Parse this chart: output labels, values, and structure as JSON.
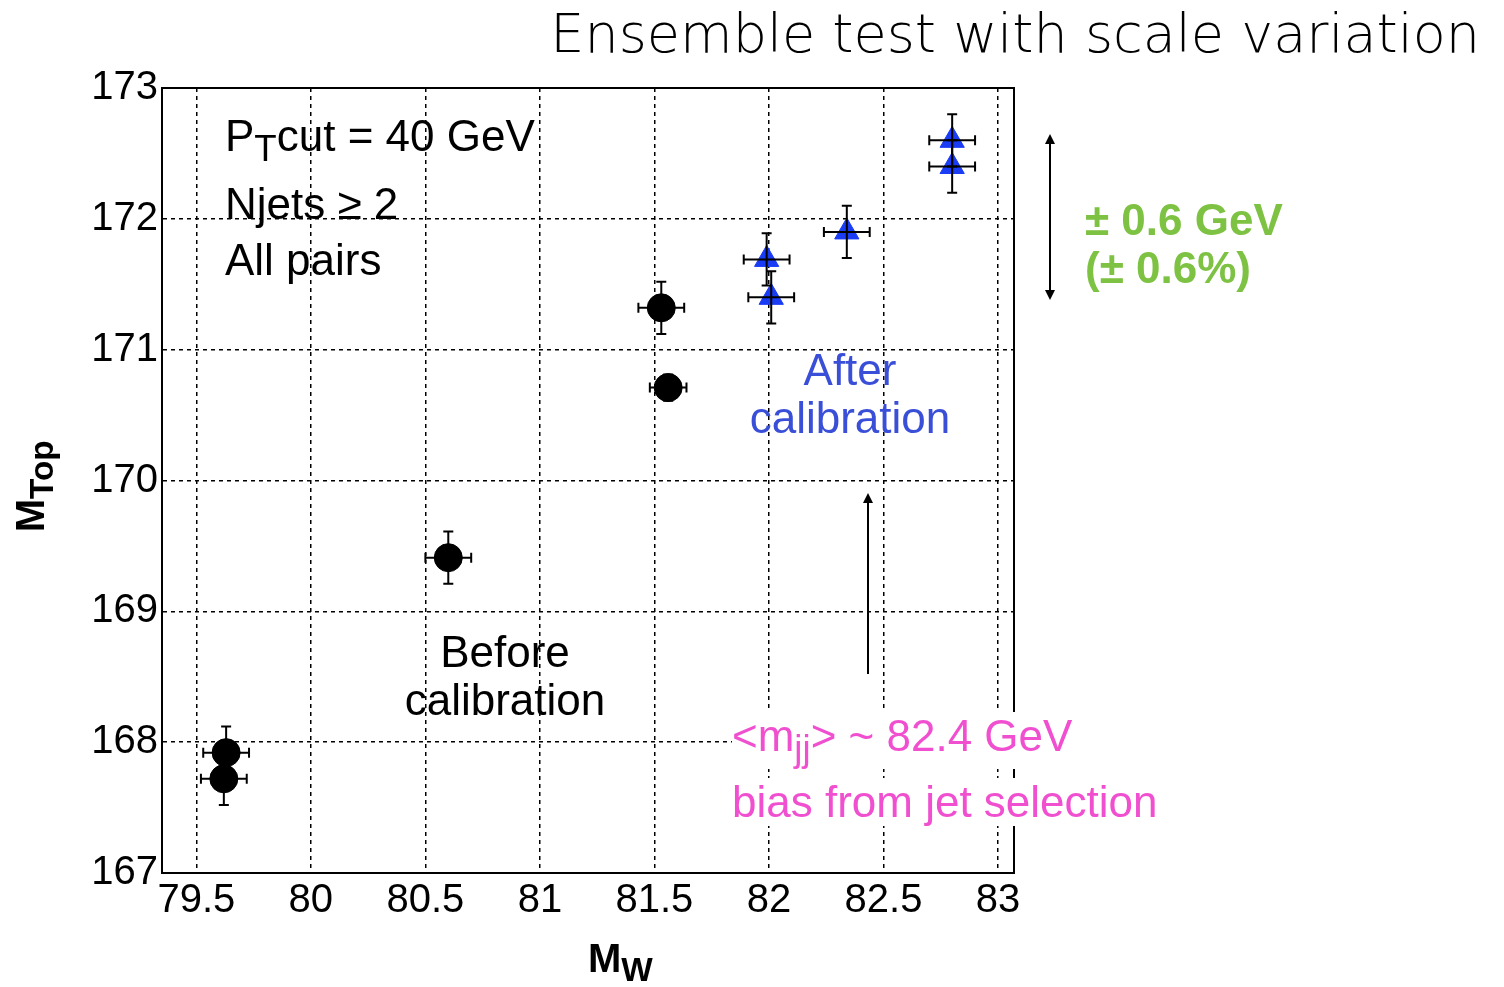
{
  "chart_data": {
    "type": "scatter",
    "title": "Ensemble test with scale variation",
    "xlabel": "M$_{W}$",
    "ylabel": "M$_{Top}$",
    "xlim": [
      79.35,
      83.07
    ],
    "xticks": [
      79.5,
      80,
      80.5,
      81,
      81.5,
      82,
      82.5,
      83
    ],
    "ylim": [
      167,
      173
    ],
    "yticks": [
      167,
      168,
      169,
      170,
      171,
      172,
      173
    ],
    "grid": true,
    "legend": false,
    "annotations": [
      "P$_{T}$cut = 40 GeV",
      "Njets ≥ 2",
      "All pairs",
      "Before calibration",
      "After calibration",
      "± 0.6 GeV (± 0.6%)",
      "<m$_{jj}$> ~ 82.4 GeV",
      "bias from jet selection"
    ],
    "series": [
      {
        "color": "#000000",
        "marker": "circle",
        "x": [
          79.63,
          79.62,
          80.6,
          81.53,
          81.56
        ],
        "values": [
          167.92,
          167.72,
          169.41,
          171.32,
          170.71
        ],
        "errors": [
          0.2,
          0.2,
          0.2,
          0.2,
          0.1
        ],
        "xerrors": [
          0.1,
          0.1,
          0.1,
          0.1,
          0.08
        ]
      },
      {
        "color": "#1a3cf5",
        "marker": "triangle",
        "x": [
          81.99,
          82.01,
          82.34,
          82.8,
          82.8
        ],
        "values": [
          171.69,
          171.4,
          171.9,
          172.6,
          172.4
        ],
        "errors": [
          0.2,
          0.2,
          0.2,
          0.2,
          0.2
        ],
        "xerrors": [
          0.1,
          0.1,
          0.1,
          0.1,
          0.1
        ]
      }
    ]
  }
}
